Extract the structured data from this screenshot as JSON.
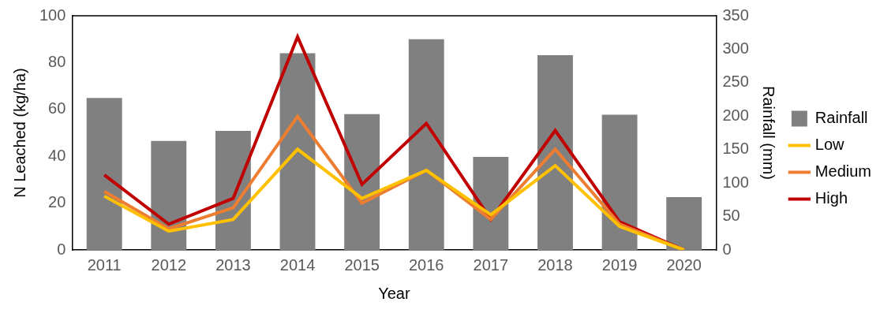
{
  "chart_data": {
    "type": "bar",
    "x_label": "Year",
    "y_label": "N Leached (kg/ha)",
    "y2_label": "Rainfall (mm)",
    "categories": [
      "2011",
      "2012",
      "2013",
      "2014",
      "2015",
      "2016",
      "2017",
      "2018",
      "2019",
      "2020"
    ],
    "series": [
      {
        "name": "Rainfall",
        "type": "bar",
        "axis": "y2",
        "color": "#808080",
        "values": [
          227,
          163,
          178,
          294,
          203,
          315,
          139,
          291,
          202,
          79
        ]
      },
      {
        "name": "Low",
        "type": "line",
        "color": "#ffc000",
        "values": [
          23,
          8,
          13,
          43,
          22,
          34,
          15,
          36,
          10,
          0
        ]
      },
      {
        "name": "Medium",
        "type": "line",
        "color": "#ed7d31",
        "values": [
          25,
          9,
          18,
          57,
          20,
          34,
          13,
          43,
          11,
          0
        ]
      },
      {
        "name": "High",
        "type": "line",
        "color": "#c00000",
        "values": [
          32,
          11,
          22,
          91,
          28,
          54,
          13,
          51,
          12,
          0
        ]
      }
    ],
    "ylim": [
      0,
      100
    ],
    "yticks": [
      0,
      20,
      40,
      60,
      80,
      100
    ],
    "y2lim": [
      0,
      350
    ],
    "y2ticks": [
      0,
      50,
      100,
      150,
      200,
      250,
      300,
      350
    ],
    "grid": false,
    "legend": "right"
  }
}
